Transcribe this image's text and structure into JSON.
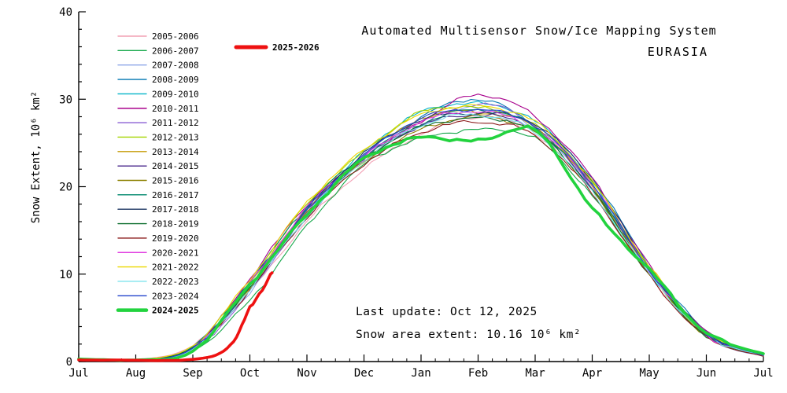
{
  "title": {
    "line1": "Automated  Multisensor  Snow/Ice  Mapping  System",
    "line2": "EURASIA"
  },
  "annotations": {
    "last_update": "Last update: Oct 12, 2025",
    "snow_area": "Snow area extent: 10.16 10⁶ km²"
  },
  "axes": {
    "ylabel": "Snow Extent, 10⁶ km²",
    "ylim": [
      0,
      40
    ],
    "yticks": [
      0,
      10,
      20,
      30,
      40
    ],
    "y_minor_step": 2,
    "xticklabels": [
      "Jul",
      "Aug",
      "Sep",
      "Oct",
      "Nov",
      "Dec",
      "Jan",
      "Feb",
      "Mar",
      "Apr",
      "May",
      "Jun",
      "Jul"
    ],
    "grid": false
  },
  "current_series_legend": {
    "label": "2025-2026",
    "color": "#ee1111"
  },
  "chart_data": {
    "type": "line",
    "x_months": [
      0,
      1,
      2,
      3,
      4,
      5,
      6,
      7,
      8,
      9,
      10,
      11,
      12
    ],
    "x_unit": "month (Jul=0 through following Jul=12)",
    "y_unit": "10⁶ km²",
    "series": [
      {
        "name": "2005-2006",
        "color": "#f2a0b4",
        "highlight": false,
        "values": [
          0.2,
          0.2,
          1.8,
          8.0,
          16.0,
          22.0,
          26.0,
          28.0,
          26.0,
          20.0,
          10.0,
          3.0,
          0.7
        ]
      },
      {
        "name": "2006-2007",
        "color": "#17a84b",
        "highlight": false,
        "values": [
          0.2,
          0.2,
          1.2,
          7.0,
          15.5,
          22.5,
          25.5,
          26.5,
          25.5,
          19.0,
          10.0,
          3.2,
          0.8
        ]
      },
      {
        "name": "2007-2008",
        "color": "#8ea6e8",
        "highlight": false,
        "values": [
          0.2,
          0.2,
          1.5,
          8.0,
          16.5,
          23.0,
          27.0,
          29.0,
          26.5,
          20.0,
          10.5,
          2.8,
          0.6
        ]
      },
      {
        "name": "2008-2009",
        "color": "#0077b0",
        "highlight": false,
        "values": [
          0.3,
          0.2,
          1.6,
          9.0,
          17.5,
          23.5,
          28.0,
          30.0,
          27.0,
          21.0,
          11.0,
          3.5,
          0.8
        ]
      },
      {
        "name": "2009-2010",
        "color": "#00b2c8",
        "highlight": false,
        "values": [
          0.2,
          0.2,
          1.4,
          8.5,
          17.0,
          24.0,
          28.5,
          29.5,
          27.5,
          20.5,
          10.0,
          3.0,
          0.7
        ]
      },
      {
        "name": "2010-2011",
        "color": "#a8008c",
        "highlight": false,
        "values": [
          0.2,
          0.2,
          1.5,
          9.5,
          18.0,
          23.0,
          27.5,
          30.5,
          28.0,
          21.0,
          11.0,
          3.4,
          0.8
        ]
      },
      {
        "name": "2011-2012",
        "color": "#8a5fd3",
        "highlight": false,
        "values": [
          0.2,
          0.2,
          1.3,
          8.0,
          17.0,
          23.5,
          27.0,
          29.5,
          27.0,
          20.0,
          10.5,
          3.1,
          0.7
        ]
      },
      {
        "name": "2012-2013",
        "color": "#a4d400",
        "highlight": false,
        "values": [
          0.2,
          0.2,
          1.6,
          9.0,
          18.0,
          24.0,
          28.5,
          29.0,
          27.0,
          20.5,
          10.8,
          3.2,
          0.7
        ]
      },
      {
        "name": "2013-2014",
        "color": "#c49a00",
        "highlight": false,
        "values": [
          0.2,
          0.2,
          1.4,
          8.5,
          17.5,
          23.0,
          27.8,
          28.5,
          26.8,
          20.0,
          10.2,
          3.0,
          0.7
        ]
      },
      {
        "name": "2014-2015",
        "color": "#4b2a8c",
        "highlight": false,
        "values": [
          0.2,
          0.2,
          1.5,
          9.0,
          17.2,
          23.2,
          27.0,
          28.2,
          26.5,
          19.8,
          10.4,
          3.1,
          0.7
        ]
      },
      {
        "name": "2015-2016",
        "color": "#8b8000",
        "highlight": false,
        "values": [
          0.2,
          0.2,
          1.4,
          8.8,
          17.0,
          22.8,
          26.5,
          28.0,
          26.2,
          19.5,
          10.0,
          3.0,
          0.7
        ]
      },
      {
        "name": "2016-2017",
        "color": "#00876c",
        "highlight": false,
        "values": [
          0.2,
          0.2,
          1.7,
          9.2,
          17.8,
          23.5,
          27.2,
          28.8,
          26.8,
          20.2,
          10.6,
          3.2,
          0.7
        ]
      },
      {
        "name": "2017-2018",
        "color": "#1f3864",
        "highlight": false,
        "values": [
          0.2,
          0.2,
          1.5,
          8.6,
          17.4,
          23.8,
          27.6,
          28.4,
          27.2,
          20.8,
          10.8,
          3.3,
          0.8
        ]
      },
      {
        "name": "2018-2019",
        "color": "#0c6e2e",
        "highlight": false,
        "values": [
          0.2,
          0.2,
          1.6,
          8.4,
          16.8,
          23.2,
          26.8,
          27.8,
          26.4,
          19.6,
          10.2,
          2.9,
          0.7
        ]
      },
      {
        "name": "2019-2020",
        "color": "#8b1a1a",
        "highlight": false,
        "values": [
          0.2,
          0.2,
          1.3,
          8.2,
          16.5,
          22.6,
          26.2,
          27.4,
          25.8,
          19.2,
          9.8,
          2.8,
          0.6
        ]
      },
      {
        "name": "2020-2021",
        "color": "#e03ce0",
        "highlight": false,
        "values": [
          0.2,
          0.2,
          1.5,
          8.9,
          17.6,
          23.4,
          27.4,
          28.6,
          26.6,
          20.4,
          10.4,
          3.1,
          0.7
        ]
      },
      {
        "name": "2021-2022",
        "color": "#ecd800",
        "highlight": false,
        "values": [
          0.2,
          0.2,
          1.8,
          9.4,
          18.2,
          24.2,
          28.2,
          29.2,
          27.4,
          20.6,
          10.9,
          3.3,
          0.8
        ]
      },
      {
        "name": "2022-2023",
        "color": "#7fe4ee",
        "highlight": false,
        "values": [
          0.2,
          0.2,
          1.4,
          8.3,
          16.6,
          23.0,
          27.0,
          28.2,
          26.2,
          19.4,
          10.1,
          3.0,
          0.7
        ]
      },
      {
        "name": "2023-2024",
        "color": "#2244cc",
        "highlight": false,
        "values": [
          0.2,
          0.2,
          1.5,
          8.7,
          17.3,
          23.6,
          27.8,
          28.8,
          27.0,
          20.3,
          10.5,
          3.2,
          0.7
        ]
      },
      {
        "name": "2024-2025",
        "color": "#22d33e",
        "highlight": true,
        "values": [
          0.3,
          0.2,
          1.2,
          8.8,
          16.8,
          23.2,
          25.6,
          25.2,
          26.4,
          17.5,
          10.5,
          3.3,
          0.9
        ]
      }
    ],
    "current_series": {
      "name": "2025-2026",
      "color": "#ee1111",
      "highlight": true,
      "x": [
        0,
        1,
        2,
        2.6,
        3,
        3.39
      ],
      "values": [
        0.2,
        0.15,
        0.25,
        1.5,
        6.0,
        10.16
      ]
    }
  }
}
